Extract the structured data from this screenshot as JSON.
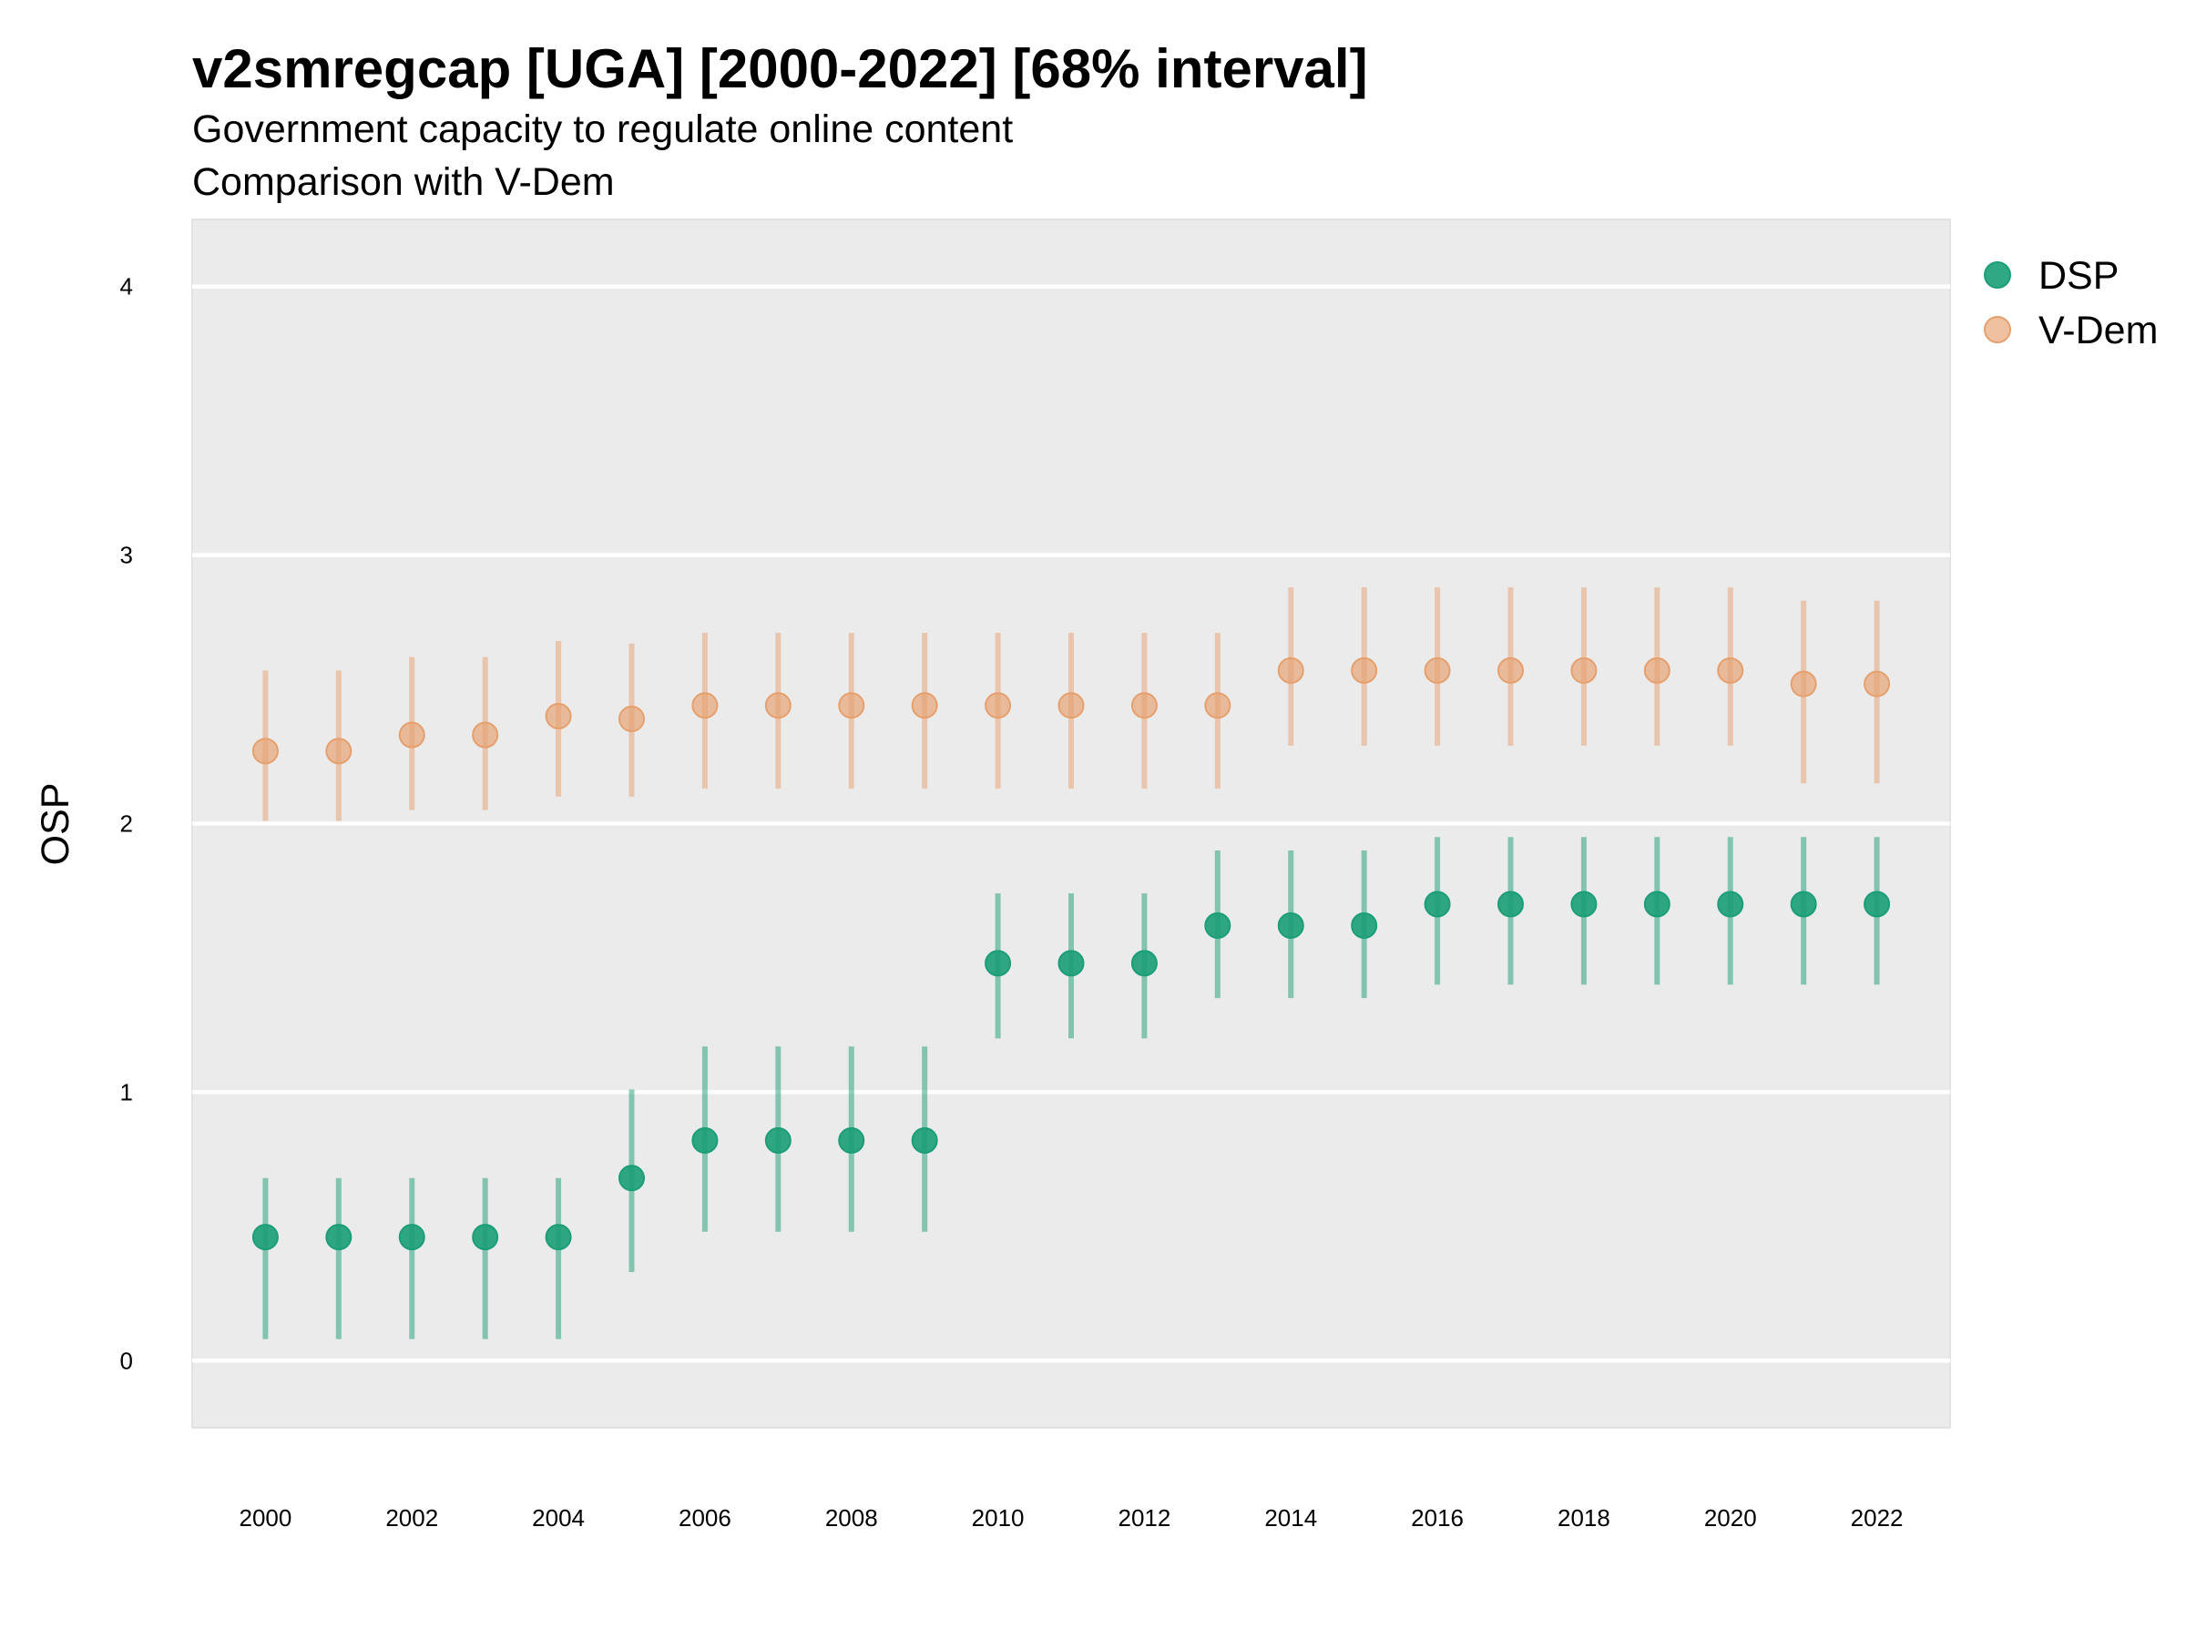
{
  "chart_data": {
    "type": "scatter",
    "title": "v2smregcap [UGA] [2000-2022] [68% interval]",
    "subtitle_lines": [
      "Government capacity to regulate online content",
      "Comparison with V-Dem"
    ],
    "xlabel": "",
    "ylabel": "OSP",
    "x": [
      2000,
      2001,
      2002,
      2003,
      2004,
      2005,
      2006,
      2007,
      2008,
      2009,
      2010,
      2011,
      2012,
      2013,
      2014,
      2015,
      2016,
      2017,
      2018,
      2019,
      2020,
      2021,
      2022
    ],
    "x_ticks": [
      "2000",
      "2002",
      "2004",
      "2006",
      "2008",
      "2010",
      "2012",
      "2014",
      "2016",
      "2018",
      "2020",
      "2022"
    ],
    "y_ticks": [
      "0",
      "1",
      "2",
      "3",
      "4"
    ],
    "xlim": [
      1999,
      2023
    ],
    "ylim": [
      -0.25,
      4.25
    ],
    "grid": true,
    "legend_position": "right",
    "series": [
      {
        "name": "DSP",
        "color": "#1b9e77",
        "values": [
          0.46,
          0.46,
          0.46,
          0.46,
          0.46,
          0.68,
          0.82,
          0.82,
          0.82,
          0.82,
          1.48,
          1.48,
          1.48,
          1.62,
          1.62,
          1.62,
          1.7,
          1.7,
          1.7,
          1.7,
          1.7,
          1.7,
          1.7
        ],
        "lower": [
          0.08,
          0.08,
          0.08,
          0.08,
          0.08,
          0.33,
          0.48,
          0.48,
          0.48,
          0.48,
          1.2,
          1.2,
          1.2,
          1.35,
          1.35,
          1.35,
          1.4,
          1.4,
          1.4,
          1.4,
          1.4,
          1.4,
          1.4
        ],
        "upper": [
          0.68,
          0.68,
          0.68,
          0.68,
          0.68,
          1.01,
          1.17,
          1.17,
          1.17,
          1.17,
          1.74,
          1.74,
          1.74,
          1.9,
          1.9,
          1.9,
          1.95,
          1.95,
          1.95,
          1.95,
          1.95,
          1.95,
          1.95
        ]
      },
      {
        "name": "V-Dem",
        "color": "#e6a06e",
        "values": [
          2.27,
          2.27,
          2.33,
          2.33,
          2.4,
          2.39,
          2.44,
          2.44,
          2.44,
          2.44,
          2.44,
          2.44,
          2.44,
          2.44,
          2.57,
          2.57,
          2.57,
          2.57,
          2.57,
          2.57,
          2.57,
          2.52,
          2.52
        ],
        "lower": [
          2.01,
          2.01,
          2.05,
          2.05,
          2.1,
          2.1,
          2.13,
          2.13,
          2.13,
          2.13,
          2.13,
          2.13,
          2.13,
          2.13,
          2.29,
          2.29,
          2.29,
          2.29,
          2.29,
          2.29,
          2.29,
          2.15,
          2.15
        ],
        "upper": [
          2.57,
          2.57,
          2.62,
          2.62,
          2.68,
          2.67,
          2.71,
          2.71,
          2.71,
          2.71,
          2.71,
          2.71,
          2.71,
          2.71,
          2.88,
          2.88,
          2.88,
          2.88,
          2.88,
          2.88,
          2.88,
          2.83,
          2.83
        ]
      }
    ]
  }
}
